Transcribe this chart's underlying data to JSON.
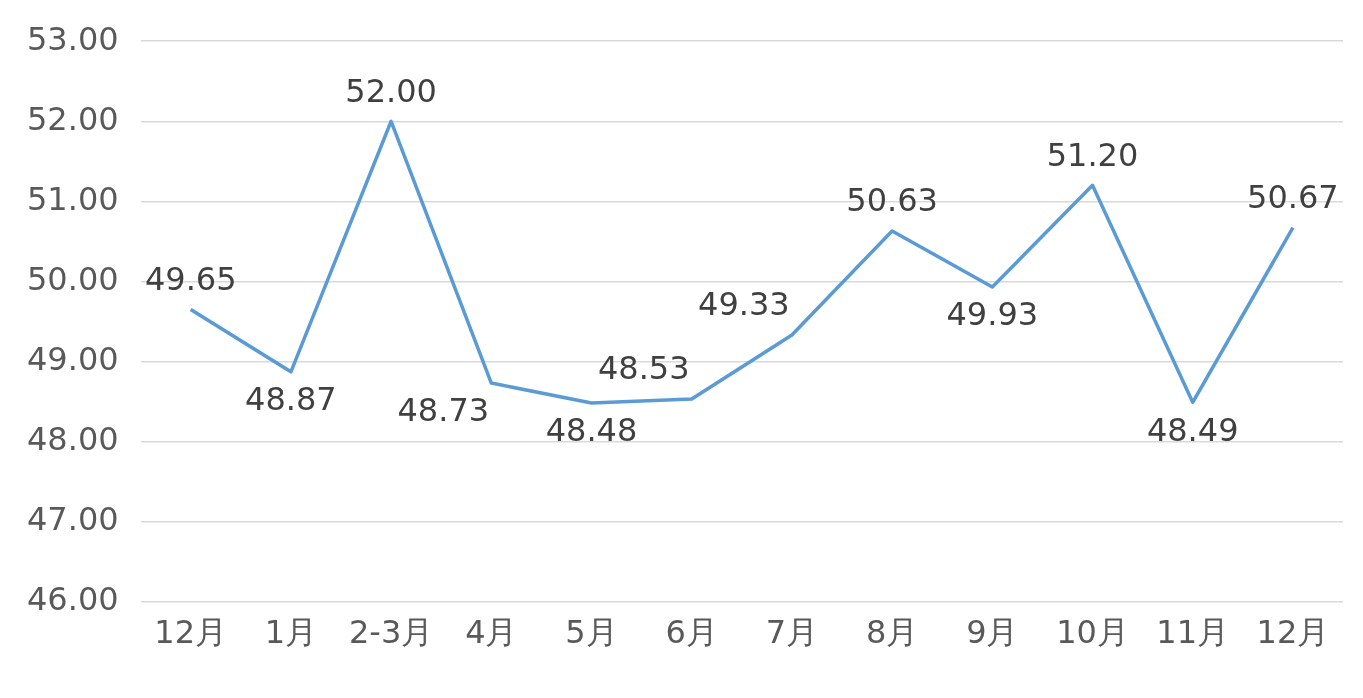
{
  "chart_data": {
    "type": "line",
    "categories": [
      "12月",
      "1月",
      "2-3月",
      "4月",
      "5月",
      "6月",
      "7月",
      "8月",
      "9月",
      "10月",
      "11月",
      "12月"
    ],
    "series": [
      {
        "color": "#5b9bd5",
        "values": [
          49.65,
          48.87,
          52.0,
          48.73,
          48.48,
          48.53,
          49.33,
          50.63,
          49.93,
          51.2,
          48.49,
          50.67
        ],
        "value_labels": [
          "49.65",
          "48.87",
          "52.00",
          "48.73",
          "48.48",
          "48.53",
          "49.33",
          "50.63",
          "49.93",
          "51.20",
          "48.49",
          "50.67"
        ]
      }
    ],
    "ylim": [
      46,
      53
    ],
    "yticks": [
      {
        "value": 46,
        "label": "46.00"
      },
      {
        "value": 47,
        "label": "47.00"
      },
      {
        "value": 48,
        "label": "48.00"
      },
      {
        "value": 49,
        "label": "49.00"
      },
      {
        "value": 50,
        "label": "50.00"
      },
      {
        "value": 51,
        "label": "51.00"
      },
      {
        "value": 52,
        "label": "52.00"
      },
      {
        "value": 53,
        "label": "53.00"
      }
    ],
    "grid": "y",
    "legend": false,
    "marker": "none",
    "line_style": "solid"
  }
}
